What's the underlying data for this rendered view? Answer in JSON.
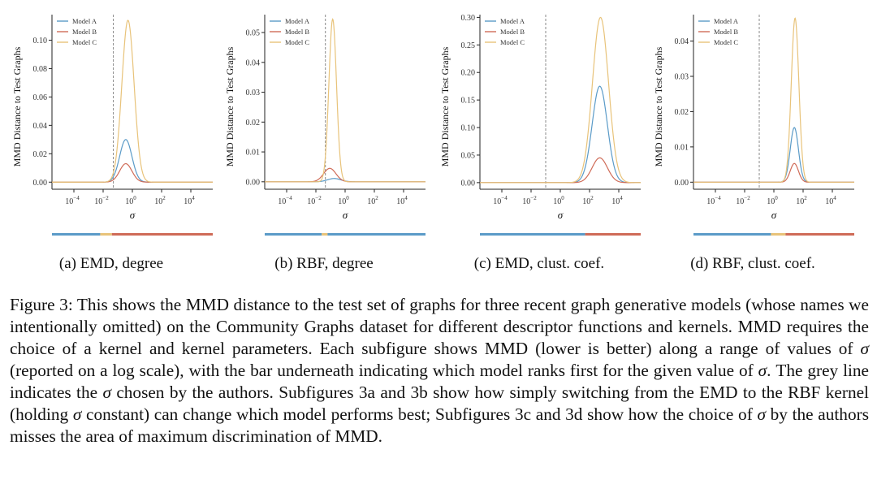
{
  "figure": {
    "colors": {
      "model_a": "#5b9bc8",
      "model_b": "#cf6b57",
      "model_c": "#e8c37a",
      "chosen_line": "#888888",
      "axis": "#222222"
    },
    "subcaptions": [
      "(a) EMD, degree",
      "(b) RBF, degree",
      "(c) EMD, clust. coef.",
      "(d) RBF, clust. coef."
    ],
    "caption": "Figure 3: This shows the MMD distance to the test set of graphs for three recent graph generative models (whose names we intentionally omitted) on the Community Graphs dataset for different descriptor functions and kernels. MMD requires the choice of a kernel and kernel parameters. Each subfigure shows MMD (lower is better) along a range of values of σ (reported on a log scale), with the bar underneath indicating which model ranks first for the given value of σ. The grey line indicates the σ chosen by the authors. Subfigures 3a and 3b show how simply switching from the EMD to the RBF kernel (holding σ constant) can change which model performs best; Subfigures 3c and 3d show how the choice of σ by the authors misses the area of maximum discrimination of MMD."
  },
  "chart_data": [
    {
      "type": "line",
      "ylabel": "MMD Distance to Test Graphs",
      "xlabel": "σ",
      "x_scale": "log",
      "xlim_log10": [
        -5.5,
        5.5
      ],
      "ylim": [
        -0.005,
        0.118
      ],
      "yticks": [
        0.0,
        0.02,
        0.04,
        0.06,
        0.08,
        0.1
      ],
      "ytick_labels": [
        "0.00",
        "0.02",
        "0.04",
        "0.06",
        "0.08",
        "0.10"
      ],
      "xticks_log10": [
        -4,
        -2,
        0,
        2,
        4
      ],
      "chosen_sigma_log10": -1.3,
      "legend": [
        "Model A",
        "Model B",
        "Model C"
      ],
      "legend_position": "top-left",
      "series": [
        {
          "name": "Model A",
          "peak_log10": -0.45,
          "peak_value": 0.03,
          "width": 0.42
        },
        {
          "name": "Model B",
          "peak_log10": -0.45,
          "peak_value": 0.013,
          "width": 0.42
        },
        {
          "name": "Model C",
          "peak_log10": -0.3,
          "peak_value": 0.114,
          "width": 0.42
        }
      ],
      "rank_bar": [
        {
          "from_log10": -5.5,
          "to_log10": -2.2,
          "winner": "Model A"
        },
        {
          "from_log10": -2.2,
          "to_log10": -1.4,
          "winner": "Model C"
        },
        {
          "from_log10": -1.4,
          "to_log10": 5.5,
          "winner": "Model B"
        }
      ]
    },
    {
      "type": "line",
      "ylabel": "MMD Distance to Test Graphs",
      "xlabel": "σ",
      "x_scale": "log",
      "xlim_log10": [
        -5.5,
        5.5
      ],
      "ylim": [
        -0.0025,
        0.056
      ],
      "yticks": [
        0.0,
        0.01,
        0.02,
        0.03,
        0.04,
        0.05
      ],
      "ytick_labels": [
        "0.00",
        "0.01",
        "0.02",
        "0.03",
        "0.04",
        "0.05"
      ],
      "xticks_log10": [
        -4,
        -2,
        0,
        2,
        4
      ],
      "chosen_sigma_log10": -1.35,
      "legend": [
        "Model A",
        "Model B",
        "Model C"
      ],
      "legend_position": "top-left",
      "series": [
        {
          "name": "Model A",
          "peak_log10": -0.75,
          "peak_value": 0.0011,
          "width": 0.45
        },
        {
          "name": "Model B",
          "peak_log10": -1.05,
          "peak_value": 0.0045,
          "width": 0.42
        },
        {
          "name": "Model C",
          "peak_log10": -0.85,
          "peak_value": 0.0545,
          "width": 0.26
        }
      ],
      "rank_bar": [
        {
          "from_log10": -5.5,
          "to_log10": -1.6,
          "winner": "Model A"
        },
        {
          "from_log10": -1.6,
          "to_log10": -1.2,
          "winner": "Model C"
        },
        {
          "from_log10": -1.2,
          "to_log10": 5.5,
          "winner": "Model A"
        }
      ]
    },
    {
      "type": "line",
      "ylabel": "MMD Distance to Test Graphs",
      "xlabel": "σ",
      "x_scale": "log",
      "xlim_log10": [
        -5.5,
        5.5
      ],
      "ylim": [
        -0.012,
        0.305
      ],
      "yticks": [
        0.0,
        0.05,
        0.1,
        0.15,
        0.2,
        0.25,
        0.3
      ],
      "ytick_labels": [
        "0.00",
        "0.05",
        "0.10",
        "0.15",
        "0.20",
        "0.25",
        "0.30"
      ],
      "xticks_log10": [
        -4,
        -2,
        0,
        2,
        4
      ],
      "chosen_sigma_log10": -1.0,
      "legend": [
        "Model A",
        "Model B",
        "Model C"
      ],
      "legend_position": "top-left",
      "series": [
        {
          "name": "Model A",
          "peak_log10": 2.7,
          "peak_value": 0.175,
          "width": 0.52
        },
        {
          "name": "Model B",
          "peak_log10": 2.7,
          "peak_value": 0.045,
          "width": 0.52
        },
        {
          "name": "Model C",
          "peak_log10": 2.75,
          "peak_value": 0.3,
          "width": 0.55
        }
      ],
      "rank_bar": [
        {
          "from_log10": -5.5,
          "to_log10": 1.7,
          "winner": "Model A"
        },
        {
          "from_log10": 1.7,
          "to_log10": 5.5,
          "winner": "Model B"
        }
      ]
    },
    {
      "type": "line",
      "ylabel": "MMD Distance to Test Graphs",
      "xlabel": "σ",
      "x_scale": "log",
      "xlim_log10": [
        -5.5,
        5.5
      ],
      "ylim": [
        -0.002,
        0.0475
      ],
      "yticks": [
        0.0,
        0.01,
        0.02,
        0.03,
        0.04
      ],
      "ytick_labels": [
        "0.00",
        "0.01",
        "0.02",
        "0.03",
        "0.04"
      ],
      "xticks_log10": [
        -4,
        -2,
        0,
        2,
        4
      ],
      "chosen_sigma_log10": -1.0,
      "legend": [
        "Model A",
        "Model B",
        "Model C"
      ],
      "legend_position": "top-left",
      "series": [
        {
          "name": "Model A",
          "peak_log10": 1.4,
          "peak_value": 0.0155,
          "width": 0.28
        },
        {
          "name": "Model B",
          "peak_log10": 1.4,
          "peak_value": 0.0053,
          "width": 0.28
        },
        {
          "name": "Model C",
          "peak_log10": 1.45,
          "peak_value": 0.0465,
          "width": 0.26
        }
      ],
      "rank_bar": [
        {
          "from_log10": -5.5,
          "to_log10": -0.2,
          "winner": "Model A"
        },
        {
          "from_log10": -0.2,
          "to_log10": 0.8,
          "winner": "Model C"
        },
        {
          "from_log10": 0.8,
          "to_log10": 5.5,
          "winner": "Model B"
        }
      ]
    }
  ]
}
